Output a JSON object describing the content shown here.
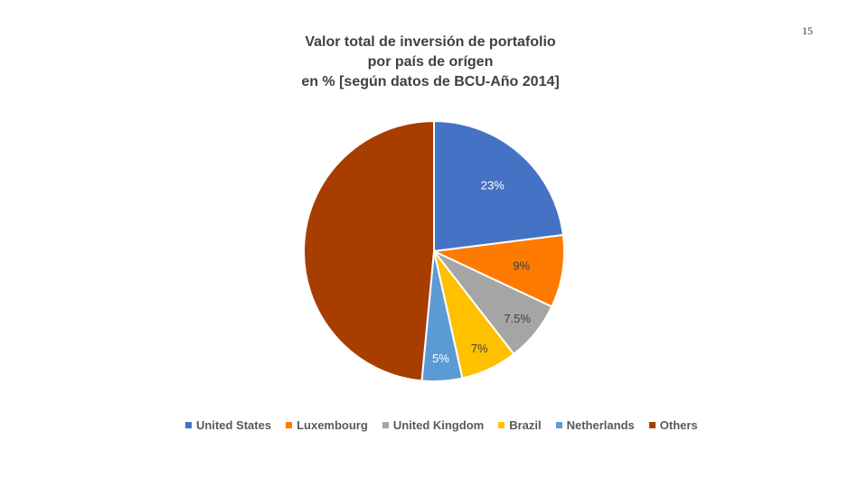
{
  "slide": {
    "number": "15"
  },
  "chart_data": {
    "type": "pie",
    "title_lines": [
      "Valor total de inversión de portafolio",
      "por país de orígen",
      "en % [según datos de BCU-Año 2014]"
    ],
    "categories": [
      "United States",
      "Luxembourg",
      "United Kingdom",
      "Brazil",
      "Netherlands",
      "Others"
    ],
    "values": [
      23,
      9,
      7.5,
      7,
      5,
      48.5
    ],
    "labels": [
      "23%",
      "9%",
      "7.5%",
      "7%",
      "5%",
      ""
    ],
    "colors": [
      "#4472C4",
      "#FF7A00",
      "#A5A5A5",
      "#FFC000",
      "#5B9BD5",
      "#A83D00"
    ],
    "label_colors": [
      "#ffffff",
      "#404040",
      "#404040",
      "#404040",
      "#ffffff",
      "#ffffff"
    ],
    "legend_position": "bottom"
  }
}
